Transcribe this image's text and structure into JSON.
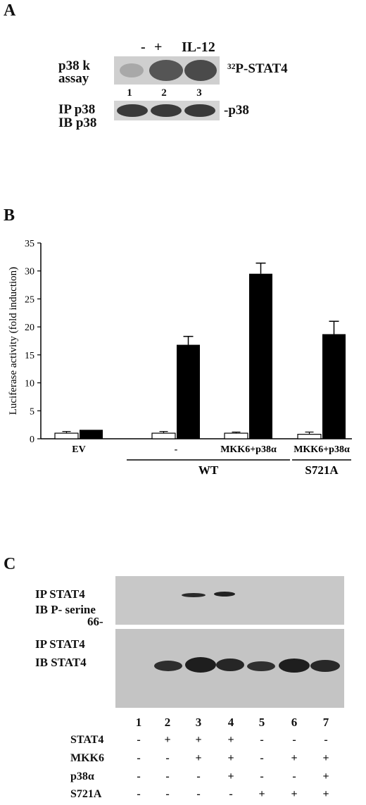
{
  "panel_a": {
    "letter": "A",
    "lane_headers": [
      "-",
      "+",
      "IL-12"
    ],
    "left_label_top": [
      "p38 k",
      "assay"
    ],
    "right_label_top": "³²P-STAT4",
    "lane_numbers": [
      "1",
      "2",
      "3"
    ],
    "left_label_bottom": [
      "IP p38",
      "IB p38"
    ],
    "right_label_bottom": "-p38"
  },
  "panel_b": {
    "letter": "B"
  },
  "chart_data": {
    "type": "bar",
    "ylabel": "Luciferase activity (fold induction)",
    "ylim": [
      0,
      35
    ],
    "yticks": [
      0,
      5,
      10,
      15,
      20,
      25,
      30,
      35
    ],
    "groups": [
      {
        "label": "EV",
        "open": 1.0,
        "open_err": 0.3,
        "filled": 1.6,
        "filled_err": 0.0
      },
      {
        "label": "-",
        "open": 1.0,
        "open_err": 0.3,
        "filled": 16.8,
        "filled_err": 1.5
      },
      {
        "label": "MKK6+p38α",
        "open": 1.0,
        "open_err": 0.2,
        "filled": 29.5,
        "filled_err": 1.9
      },
      {
        "label": "MKK6+p38α",
        "open": 0.8,
        "open_err": 0.4,
        "filled": 18.7,
        "filled_err": 2.3
      }
    ],
    "bracket_labels": [
      "WT",
      "S721A"
    ],
    "grid": false
  },
  "panel_c": {
    "letter": "C",
    "top_label": [
      "IP STAT4",
      "IB P- serine"
    ],
    "marker": "66-",
    "bottom_label": [
      "IP STAT4",
      "IB STAT4"
    ],
    "lane_numbers": [
      "1",
      "2",
      "3",
      "4",
      "5",
      "6",
      "7"
    ],
    "rows": [
      {
        "label": "STAT4",
        "values": [
          "-",
          "+",
          "+",
          "+",
          "-",
          "-",
          "-"
        ]
      },
      {
        "label": "MKK6",
        "values": [
          "-",
          "-",
          "+",
          "+",
          "-",
          "+",
          "+"
        ]
      },
      {
        "label": "p38α",
        "values": [
          "-",
          "-",
          "-",
          "+",
          "-",
          "-",
          "+"
        ]
      },
      {
        "label": "S721A",
        "values": [
          "-",
          "-",
          "-",
          "-",
          "+",
          "+",
          "+"
        ]
      }
    ]
  }
}
